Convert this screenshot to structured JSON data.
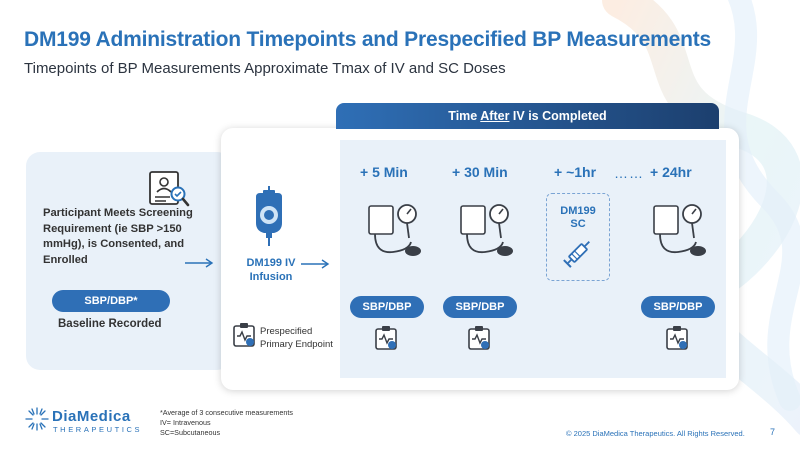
{
  "title": "DM199 Administration Timepoints and Prespecified BP Measurements",
  "subtitle": "Timepoints of BP Measurements Approximate Tmax of IV and SC Doses",
  "left_panel": {
    "participant_text": "Participant Meets Screening Requirement (ie SBP >150 mmHg), is Consented, and Enrolled",
    "baseline_pill": "SBP/DBP*",
    "baseline_label": "Baseline Recorded"
  },
  "timeline": {
    "header_prefix": "Time ",
    "header_emphasis": "After",
    "header_suffix": " IV is Completed",
    "iv_label_line1": "DM199 IV",
    "iv_label_line2": "Infusion",
    "timepoints": [
      "+ 5 Min",
      "+ 30 Min",
      "+ ~1hr",
      "+ 24hr"
    ],
    "dots": "……",
    "sc_line1": "DM199",
    "sc_line2": "SC",
    "measure_label": "SBP/DBP",
    "endpoint_line1": "Prespecified",
    "endpoint_line2": "Primary Endpoint"
  },
  "footer": {
    "logo_name": "DiaMedica",
    "logo_sub": "THERAPEUTICS",
    "footnote_1": "*Average of 3 consecutive measurements",
    "footnote_2": "IV= Intravenous",
    "footnote_3": "SC=Subcutaneous",
    "copyright": "© 2025 DiaMedica Therapeutics. All Rights Reserved.",
    "page_number": "7"
  },
  "colors": {
    "brand_blue": "#2a72b8",
    "pill_blue": "#2f6fb6",
    "header_dark": "#1c3f6e",
    "panel_bg": "#e9f1f9"
  }
}
